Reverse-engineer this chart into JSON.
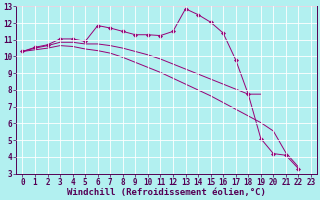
{
  "background_color": "#b2f0f0",
  "line_color": "#990077",
  "grid_color": "#ffffff",
  "xlim": [
    -0.5,
    23.5
  ],
  "ylim": [
    3,
    13
  ],
  "xtick_labels": [
    "0",
    "1",
    "2",
    "3",
    "4",
    "5",
    "6",
    "7",
    "8",
    "9",
    "10",
    "11",
    "12",
    "13",
    "14",
    "15",
    "16",
    "17",
    "18",
    "19",
    "20",
    "21",
    "22",
    "23"
  ],
  "xtick_vals": [
    0,
    1,
    2,
    3,
    4,
    5,
    6,
    7,
    8,
    9,
    10,
    11,
    12,
    13,
    14,
    15,
    16,
    17,
    18,
    19,
    20,
    21,
    22,
    23
  ],
  "ytick_vals": [
    3,
    4,
    5,
    6,
    7,
    8,
    9,
    10,
    11,
    12,
    13
  ],
  "xlabel": "Windchill (Refroidissement éolien,°C)",
  "line1_x": [
    0,
    1,
    2,
    3,
    4,
    5,
    6,
    7,
    8,
    9,
    10,
    11,
    12,
    13,
    14,
    15,
    16,
    17,
    18,
    19,
    20,
    21,
    22
  ],
  "line1_y": [
    10.3,
    10.55,
    10.7,
    11.05,
    11.05,
    10.9,
    11.85,
    11.7,
    11.5,
    11.3,
    11.3,
    11.25,
    11.5,
    12.85,
    12.5,
    12.05,
    11.4,
    9.8,
    7.75,
    5.1,
    4.2,
    4.1,
    3.3
  ],
  "line2_x": [
    0,
    1,
    2,
    3,
    4,
    5,
    6,
    7,
    8,
    9,
    10,
    11,
    12,
    13,
    14,
    15,
    16,
    17,
    18,
    19
  ],
  "line2_y": [
    10.3,
    10.5,
    10.65,
    10.85,
    10.85,
    10.75,
    10.75,
    10.65,
    10.5,
    10.3,
    10.1,
    9.85,
    9.55,
    9.25,
    8.95,
    8.65,
    8.35,
    8.05,
    7.75,
    7.75
  ],
  "line3_x": [
    0,
    1,
    2,
    3,
    4,
    5,
    6,
    7,
    8,
    9,
    10,
    11,
    12,
    13,
    14,
    15,
    16,
    17,
    18,
    19,
    20,
    21,
    22
  ],
  "line3_y": [
    10.3,
    10.4,
    10.5,
    10.65,
    10.6,
    10.45,
    10.35,
    10.2,
    9.95,
    9.65,
    9.35,
    9.05,
    8.7,
    8.35,
    8.0,
    7.65,
    7.25,
    6.85,
    6.45,
    6.05,
    5.55,
    4.25,
    3.4
  ],
  "fontsize_tick": 5.5,
  "fontsize_label": 6.5
}
